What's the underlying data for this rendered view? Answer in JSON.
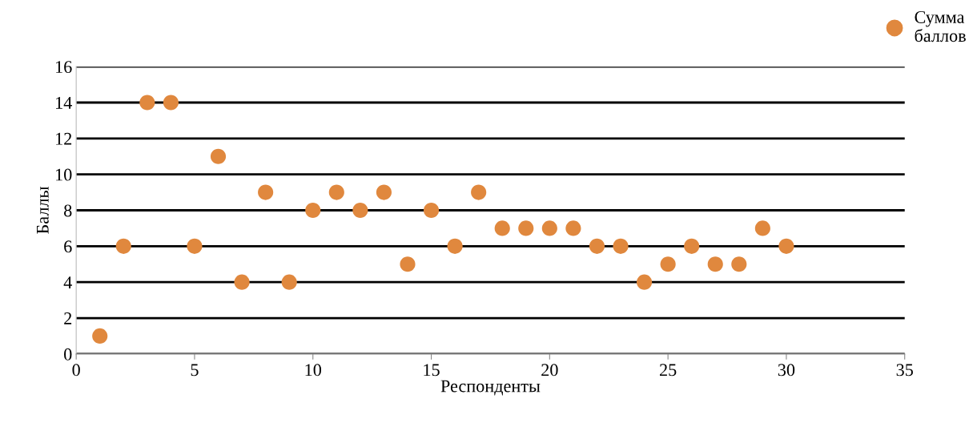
{
  "chart_data": {
    "type": "scatter",
    "xlabel": "Респонденты",
    "ylabel": "Баллы",
    "x": [
      1,
      2,
      3,
      4,
      5,
      6,
      7,
      8,
      9,
      10,
      11,
      12,
      13,
      14,
      15,
      16,
      17,
      18,
      19,
      20,
      21,
      22,
      23,
      24,
      25,
      26,
      27,
      28,
      29,
      30
    ],
    "series": [
      {
        "name": "Сумма баллов",
        "color": "#e0883e",
        "values": [
          1,
          6,
          14,
          14,
          6,
          11,
          4,
          9,
          4,
          8,
          9,
          8,
          9,
          5,
          8,
          6,
          9,
          7,
          7,
          7,
          7,
          6,
          6,
          4,
          5,
          6,
          5,
          5,
          7,
          6
        ]
      }
    ],
    "xlim": [
      0,
      35
    ],
    "xticks": [
      0,
      5,
      10,
      15,
      20,
      25,
      30,
      35
    ],
    "ylim": [
      0,
      16
    ],
    "yticks": [
      0,
      2,
      4,
      6,
      8,
      10,
      12,
      14,
      16
    ],
    "grid": "y",
    "legend": "top right",
    "marker": "circle"
  }
}
